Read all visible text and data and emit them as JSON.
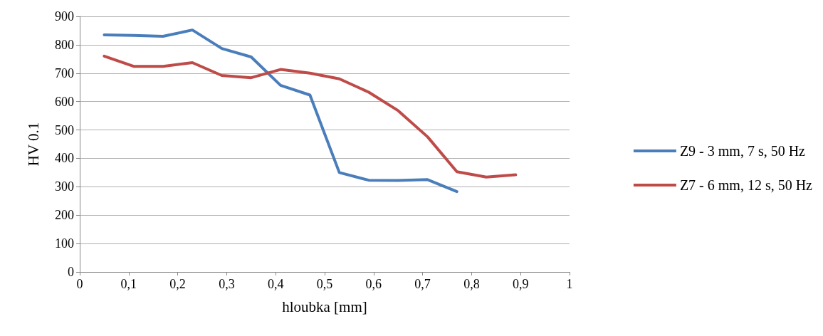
{
  "chart_data": {
    "type": "line",
    "xlabel": "hloubka [mm]",
    "ylabel": "HV 0.1",
    "xlim": [
      0,
      1
    ],
    "xticks": [
      0,
      {
        "value": 0.1,
        "label": "0,1"
      },
      {
        "value": 0.2,
        "label": "0,2"
      },
      {
        "value": 0.3,
        "label": "0,3"
      },
      {
        "value": 0.4,
        "label": "0,4"
      },
      {
        "value": 0.5,
        "label": "0,5"
      },
      {
        "value": 0.6,
        "label": "0,6"
      },
      {
        "value": 0.7,
        "label": "0,7"
      },
      {
        "value": 0.8,
        "label": "0,8"
      },
      {
        "value": 0.9,
        "label": "0,9"
      },
      1
    ],
    "ylim": [
      0,
      900
    ],
    "yticks": [
      0,
      100,
      200,
      300,
      400,
      500,
      600,
      700,
      800,
      900
    ],
    "grid": "y",
    "legend": "right",
    "marker": "none",
    "line_style": "solid",
    "series": [
      {
        "name": "Z9 - 3 mm, 7 s, 50 Hz",
        "color": "#4a7ebb",
        "x": [
          0.05,
          0.11,
          0.17,
          0.23,
          0.29,
          0.35,
          0.41,
          0.47,
          0.53,
          0.59,
          0.65,
          0.71,
          0.77
        ],
        "values": [
          835,
          833,
          830,
          852,
          787,
          757,
          657,
          623,
          350,
          323,
          322,
          325,
          283
        ]
      },
      {
        "name": "Z7 - 6 mm, 12 s, 50 Hz",
        "color": "#be4b48",
        "x": [
          0.05,
          0.11,
          0.17,
          0.23,
          0.29,
          0.35,
          0.41,
          0.47,
          0.53,
          0.59,
          0.65,
          0.71,
          0.77,
          0.83,
          0.89
        ],
        "values": [
          760,
          724,
          724,
          737,
          692,
          684,
          713,
          700,
          680,
          633,
          568,
          476,
          353,
          334,
          342
        ]
      }
    ]
  }
}
